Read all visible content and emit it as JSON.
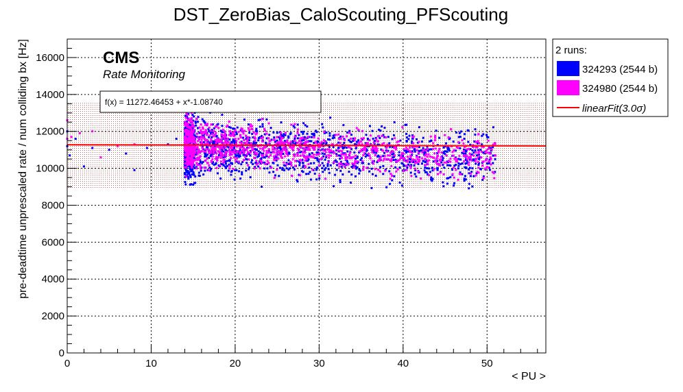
{
  "chart_data": {
    "type": "scatter",
    "title": "DST_ZeroBias_CaloScouting_PFScouting",
    "xlabel": "< PU >",
    "ylabel": "pre-deadtime unprescaled rate / num colliding bx [Hz]",
    "xlim": [
      0,
      57
    ],
    "ylim": [
      0,
      17000
    ],
    "xticks": [
      0,
      10,
      20,
      30,
      40,
      50
    ],
    "yticks": [
      0,
      2000,
      4000,
      6000,
      8000,
      10000,
      12000,
      14000,
      16000
    ],
    "grid": true,
    "legend": {
      "placement": "right-outside",
      "header": "2 runs:",
      "entries": [
        {
          "label": "324293 (2544 b)",
          "color": "#0000ff",
          "kind": "box"
        },
        {
          "label": "324980 (2544 b)",
          "color": "#ff00ff",
          "kind": "box"
        },
        {
          "label": "linearFit(3.0σ)",
          "color": "#ff0000",
          "kind": "line"
        }
      ]
    },
    "annotations": {
      "experiment": "CMS",
      "subtitle": "Rate Monitoring",
      "fit_formula": "f(x) = 11272.46453 + x*-1.08740"
    },
    "fit": {
      "intercept": 11272.46453,
      "slope": -1.0874,
      "band_low": 8900,
      "band_high": 13600,
      "x_range": [
        0,
        57
      ],
      "color": "#ff0000",
      "band_color": "#c8a0a0"
    },
    "series": [
      {
        "name": "324293 (2544 b)",
        "color": "#0000ff",
        "x_min": 14,
        "x_max": 52,
        "y_mean": 11200,
        "y_spread": 1500,
        "n_points": 1500,
        "low_pu_points": [
          [
            0,
            11200
          ],
          [
            0,
            12000
          ],
          [
            0.3,
            10700
          ],
          [
            1,
            11600
          ],
          [
            2,
            10100
          ],
          [
            3,
            11100
          ],
          [
            5,
            11000
          ],
          [
            7,
            10800
          ],
          [
            8,
            9900
          ],
          [
            9.5,
            11100
          ],
          [
            12,
            11300
          ],
          [
            13,
            11600
          ]
        ]
      },
      {
        "name": "324980 (2544 b)",
        "color": "#ff00ff",
        "x_min": 14,
        "x_max": 52,
        "y_mean": 11300,
        "y_spread": 1200,
        "n_points": 1700,
        "low_pu_points": [
          [
            0,
            11600
          ],
          [
            0,
            12600
          ],
          [
            0.5,
            11700
          ],
          [
            1.5,
            11900
          ],
          [
            3,
            12000
          ],
          [
            4,
            10600
          ],
          [
            6,
            11200
          ],
          [
            8,
            11300
          ]
        ]
      }
    ]
  }
}
